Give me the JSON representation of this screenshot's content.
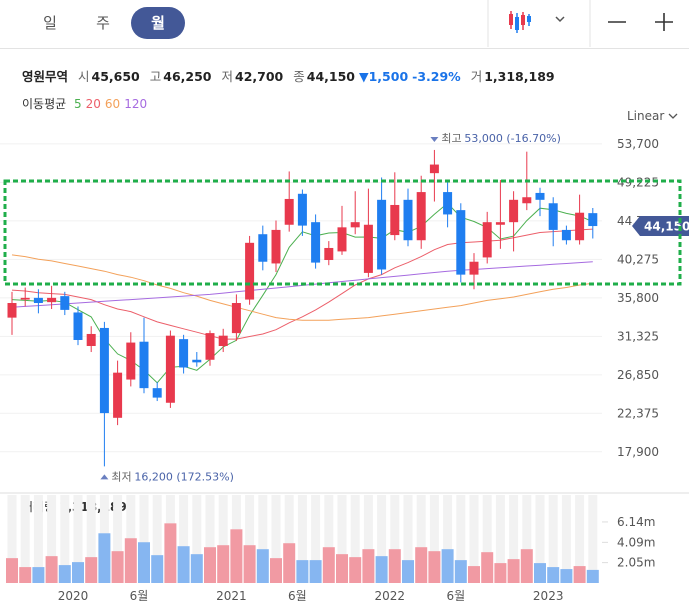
{
  "header": {
    "tabs": [
      "일",
      "주",
      "월"
    ],
    "quote": {
      "name": "영원무역",
      "open_label": "시",
      "open": "45,650",
      "high_label": "고",
      "high": "46,250",
      "low_label": "저",
      "low": "42,700",
      "close_label": "종",
      "close": "44,150",
      "change": "▼1,500",
      "change_pct": "-3.29%",
      "volume_label": "거",
      "volume": "1,318,189"
    }
  },
  "chart_data": [
    {
      "type": "candlestick",
      "open": [
        33500,
        35600,
        35800,
        35300,
        36000,
        34100,
        30200,
        32300,
        21850,
        26300,
        30700,
        25300,
        23600,
        31000,
        28600,
        28600,
        30200,
        31700,
        35600,
        43200,
        39800,
        44300,
        47900,
        44600,
        40200,
        41200,
        44000,
        38700,
        47200,
        43100,
        47200,
        42500,
        50300,
        48100,
        46000,
        38500,
        40500,
        44300,
        44600,
        46800,
        48000,
        46800,
        43700,
        42500,
        45650
      ],
      "high": [
        36500,
        37000,
        36800,
        37200,
        36500,
        34800,
        32500,
        33000,
        28500,
        31800,
        33500,
        26000,
        32000,
        31500,
        29500,
        32000,
        32200,
        36200,
        43000,
        44200,
        44800,
        50500,
        48400,
        45500,
        42400,
        46500,
        48200,
        48500,
        49800,
        50400,
        48500,
        50000,
        53000,
        49500,
        46800,
        41000,
        45800,
        49500,
        48200,
        52800,
        48600,
        47500,
        44200,
        47800,
        46250
      ],
      "low": [
        31500,
        34800,
        34000,
        34500,
        33800,
        30300,
        29500,
        16200,
        21000,
        25500,
        24700,
        23800,
        23000,
        27000,
        27800,
        27900,
        29500,
        30800,
        35000,
        39000,
        38800,
        43500,
        43000,
        39200,
        39600,
        40800,
        43200,
        38200,
        38500,
        42500,
        41800,
        41500,
        47000,
        44000,
        37600,
        36800,
        39800,
        41500,
        41200,
        46000,
        45300,
        41800,
        42000,
        42000,
        42700
      ],
      "close": [
        35200,
        35800,
        35200,
        35800,
        34400,
        30900,
        31600,
        22400,
        27100,
        30600,
        25300,
        24200,
        31400,
        27700,
        28300,
        31700,
        31400,
        35200,
        42200,
        40000,
        43700,
        47300,
        44200,
        39900,
        41600,
        44000,
        44600,
        44300,
        39100,
        46600,
        42500,
        48100,
        51300,
        45500,
        38500,
        40000,
        44600,
        44600,
        47200,
        47500,
        47200,
        43700,
        42500,
        45700,
        44150
      ],
      "up_color": "#e8394d",
      "down_color": "#1f7ef0",
      "ylim": [
        15200,
        55900
      ],
      "yticks": [
        {
          "value": 17900,
          "label": "17,900"
        },
        {
          "value": 22375,
          "label": "22,375"
        },
        {
          "value": 26850,
          "label": "26,850"
        },
        {
          "value": 31325,
          "label": "31,325"
        },
        {
          "value": 35800,
          "label": "35,800"
        },
        {
          "value": 40275,
          "label": "40,275"
        },
        {
          "value": 44750,
          "label": "44,750"
        },
        {
          "value": 49225,
          "label": "49,225"
        },
        {
          "value": 53700,
          "label": "53,700"
        }
      ],
      "scale": "Linear",
      "legend_title": "이동평균",
      "series": [
        {
          "name": "5",
          "color": "#4cb050",
          "values": [
            35600,
            35500,
            35400,
            35500,
            35280,
            34420,
            33580,
            31020,
            29280,
            28520,
            27400,
            25920,
            27720,
            27840,
            27380,
            28660,
            30100,
            30860,
            33760,
            36100,
            38500,
            41680,
            43480,
            43020,
            43340,
            43400,
            42860,
            42880,
            42720,
            43720,
            43420,
            44120,
            45520,
            46800,
            45180,
            44680,
            43980,
            42640,
            42980,
            44780,
            46220,
            46040,
            45620,
            45320,
            44650
          ]
        },
        {
          "name": "20",
          "color": "#ec5f6a",
          "values": [
            36700,
            36600,
            36400,
            36300,
            36200,
            35900,
            35600,
            35000,
            34500,
            34200,
            33600,
            33000,
            32600,
            32200,
            31800,
            31400,
            31000,
            31000,
            31300,
            31600,
            32100,
            32900,
            33600,
            34400,
            35300,
            36300,
            37300,
            38000,
            38500,
            39300,
            39900,
            40600,
            41400,
            42000,
            42200,
            42300,
            42400,
            42500,
            42800,
            43100,
            43400,
            43500,
            43600,
            43700,
            43800
          ]
        },
        {
          "name": "60",
          "color": "#f3a15a",
          "values": [
            40800,
            40600,
            40300,
            40100,
            39800,
            39500,
            39200,
            38900,
            38500,
            38200,
            37800,
            37300,
            36900,
            36400,
            36000,
            35500,
            35100,
            34700,
            34300,
            33900,
            33500,
            33300,
            33200,
            33200,
            33200,
            33300,
            33400,
            33500,
            33700,
            33900,
            34100,
            34300,
            34500,
            34700,
            34900,
            35200,
            35500,
            35700,
            35900,
            36200,
            36500,
            36800,
            37000,
            37300,
            37500
          ]
        },
        {
          "name": "120",
          "color": "#a66be0",
          "values": [
            34700,
            34800,
            34900,
            35000,
            35100,
            35200,
            35300,
            35400,
            35500,
            35600,
            35700,
            35800,
            35900,
            36000,
            36100,
            36200,
            36350,
            36500,
            36650,
            36800,
            36950,
            37100,
            37250,
            37400,
            37550,
            37700,
            37850,
            38000,
            38150,
            38300,
            38450,
            38600,
            38750,
            38900,
            39000,
            39100,
            39200,
            39300,
            39400,
            39500,
            39600,
            39700,
            39800,
            39900,
            40000
          ]
        }
      ],
      "annotations": {
        "max_title": "최고",
        "max": "53,000 (-16.70%)",
        "min_title": "최저",
        "min": "16,200 (172.53%)",
        "current": "44,150"
      }
    },
    {
      "type": "bar",
      "title": "거래량",
      "title_value": "1,318,189",
      "categories": [
        null,
        null,
        null,
        null,
        null,
        "2020",
        null,
        null,
        null,
        null,
        "6월",
        null,
        null,
        null,
        null,
        null,
        null,
        "2021",
        null,
        null,
        null,
        null,
        "6월",
        null,
        null,
        null,
        null,
        null,
        null,
        "2022",
        null,
        null,
        null,
        null,
        "6월",
        null,
        null,
        null,
        null,
        null,
        null,
        "2023",
        null,
        null,
        null
      ],
      "values": [
        2.5,
        1.6,
        1.6,
        2.7,
        1.8,
        2.1,
        2.6,
        5.0,
        3.2,
        4.5,
        4.1,
        2.8,
        6.0,
        3.7,
        2.9,
        3.6,
        3.8,
        5.4,
        3.8,
        3.4,
        2.5,
        4.0,
        2.3,
        2.3,
        3.6,
        2.9,
        2.6,
        3.4,
        2.7,
        3.4,
        2.3,
        3.6,
        3.2,
        3.4,
        2.3,
        1.7,
        3.1,
        2.0,
        2.4,
        3.4,
        2.0,
        1.6,
        1.4,
        1.7,
        1.318189
      ],
      "up_color": "#f19aa3",
      "down_color": "#86b6f1",
      "ylim": [
        0,
        8.85
      ],
      "yticks": [
        {
          "value": 2.05,
          "label": "2.05m"
        },
        {
          "value": 4.09,
          "label": "4.09m"
        },
        {
          "value": 6.14,
          "label": "6.14m"
        }
      ]
    }
  ]
}
